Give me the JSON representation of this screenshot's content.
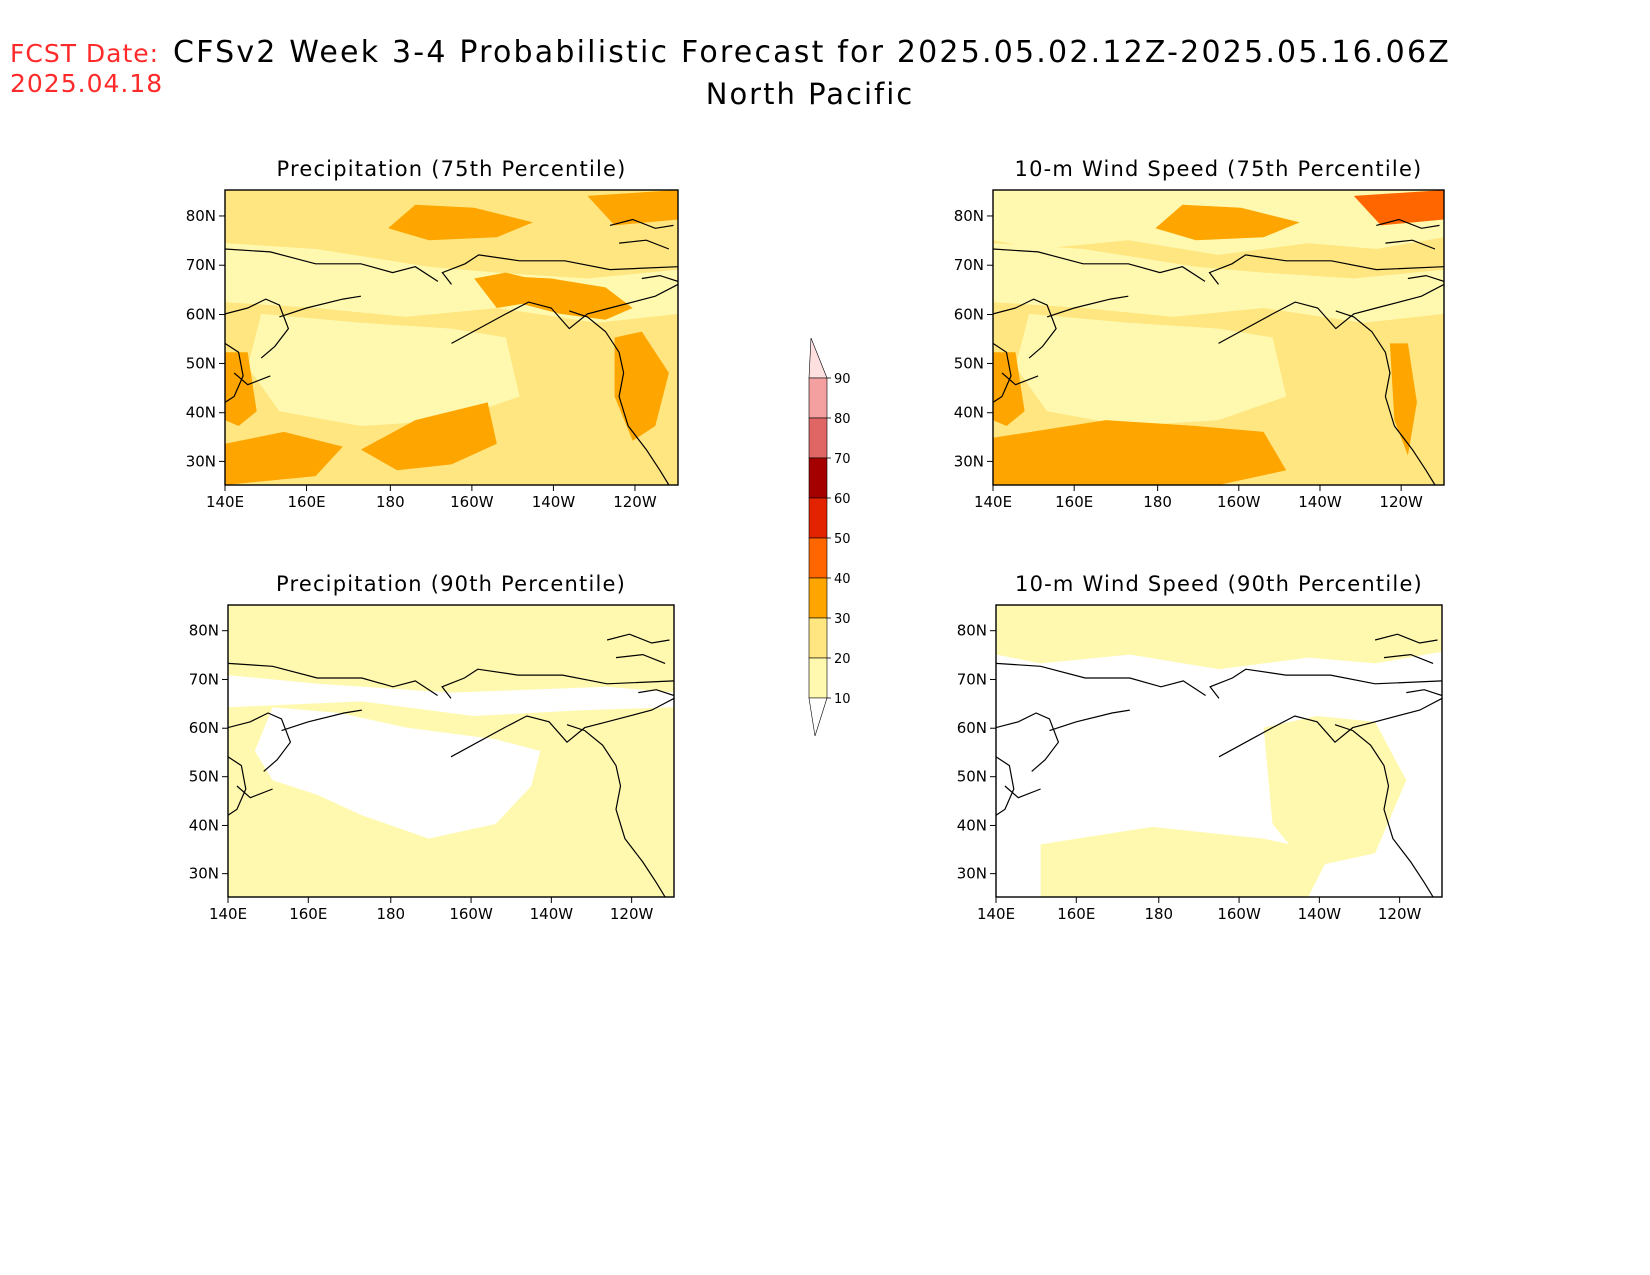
{
  "header": {
    "fcst_label": "FCST Date:",
    "fcst_date": "2025.04.18",
    "title": "CFSv2 Week 3-4 Probabilistic Forecast for 2025.05.02.12Z-2025.05.16.06Z",
    "subtitle": "North Pacific"
  },
  "colors": {
    "background": "#ffffff",
    "levels": [
      "#ffffff",
      "#fff9b0",
      "#ffe680",
      "#ffa500",
      "#ff6600",
      "#e32200",
      "#a50000",
      "#e06666",
      "#f4a0a0",
      "#ffe0e0"
    ]
  },
  "map_axes": {
    "lat_ticks": [
      "80N",
      "70N",
      "60N",
      "50N",
      "40N",
      "30N"
    ],
    "lon_ticks": [
      "140E",
      "160E",
      "180",
      "160W",
      "140W",
      "120W"
    ]
  },
  "panels": [
    {
      "id": "precip-75",
      "title": "Precipitation (75th Percentile)",
      "base_level": 2,
      "pattern": "precip75"
    },
    {
      "id": "wind-75",
      "title": "10-m Wind Speed (75th Percentile)",
      "base_level": 2,
      "pattern": "wind75"
    },
    {
      "id": "precip-90",
      "title": "Precipitation (90th Percentile)",
      "base_level": 1,
      "pattern": "precip90"
    },
    {
      "id": "wind-90",
      "title": "10-m Wind Speed (90th Percentile)",
      "base_level": 0,
      "pattern": "wind90"
    }
  ],
  "colorbar": {
    "labels": [
      "10",
      "20",
      "30",
      "40",
      "50",
      "60",
      "70",
      "80",
      "90"
    ]
  }
}
